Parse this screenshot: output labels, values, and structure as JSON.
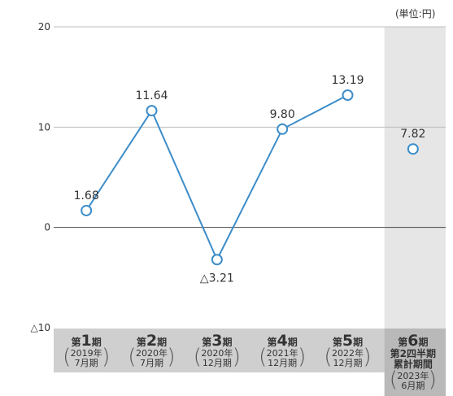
{
  "chart_data": {
    "type": "line",
    "unit_note": "(単位:円)",
    "ylim": [
      -10,
      20
    ],
    "y_ticks": [
      {
        "value": 20,
        "label": "20"
      },
      {
        "value": 10,
        "label": "10"
      },
      {
        "value": 0,
        "label": "0"
      },
      {
        "value": -10,
        "label": "△10"
      }
    ],
    "categories": [
      {
        "pre": "第",
        "num": "1",
        "post": "期",
        "extra": "",
        "sub": [
          "2019年",
          "7月期"
        ]
      },
      {
        "pre": "第",
        "num": "2",
        "post": "期",
        "extra": "",
        "sub": [
          "2020年",
          "7月期"
        ]
      },
      {
        "pre": "第",
        "num": "3",
        "post": "期",
        "extra": "",
        "sub": [
          "2020年",
          "12月期"
        ]
      },
      {
        "pre": "第",
        "num": "4",
        "post": "期",
        "extra": "",
        "sub": [
          "2021年",
          "12月期"
        ]
      },
      {
        "pre": "第",
        "num": "5",
        "post": "期",
        "extra": "",
        "sub": [
          "2022年",
          "12月期"
        ]
      },
      {
        "pre": "第",
        "num": "6",
        "post": "期",
        "extra": [
          "第2四半期",
          "累計期間"
        ],
        "sub": [
          "2023年",
          "6月期"
        ]
      }
    ],
    "series": [
      {
        "values": [
          1.68,
          11.64,
          -3.21,
          9.8,
          13.19,
          7.82
        ],
        "labels": [
          "1.68",
          "11.64",
          "△3.21",
          "9.80",
          "13.19",
          "7.82"
        ],
        "connected_points": 5
      }
    ],
    "highlight_last_category": true,
    "grid": true,
    "colors": {
      "line": "#3c8dc9",
      "marker_fill": "#ffffff",
      "grid": "#bdbdbd",
      "zero_line": "#444444",
      "category_band": "#cfcfcf",
      "highlight_column": "#e6e6e6",
      "highlight_band": "#b9b9b9"
    }
  }
}
